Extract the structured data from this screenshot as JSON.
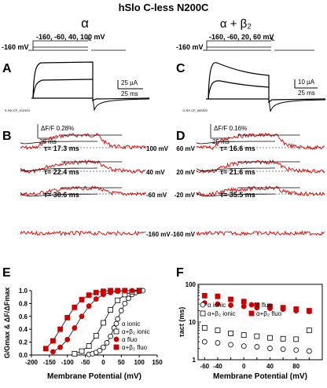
{
  "figure": {
    "title": "hSlo C-less N200C",
    "left": {
      "header": "α",
      "protocol_hold": "-160 mV",
      "protocol_steps": "-160, -60, 40, 100 mV",
      "panel_letter": "A",
      "scale_current": "25 µA",
      "scale_time": "25 ms",
      "file_tag": "K-NX-CF_102403"
    },
    "right": {
      "header": "α + β₂",
      "protocol_hold": "-160 mV",
      "protocol_steps": "-160, -60, 20, 60 mV",
      "panel_letter": "C",
      "scale_current": "10 µA",
      "scale_time": "25 ms",
      "file_tag": "G-NX-CF_060522"
    },
    "fluorescence_left": {
      "panel_letter": "B",
      "scale_df": "ΔF/F 0.28%",
      "scale_time": "25 ms",
      "traces": [
        {
          "voltage": "100 mV",
          "tau": "τ= 17.3 ms"
        },
        {
          "voltage": "40 mV",
          "tau": "τ= 22.4 ms"
        },
        {
          "voltage": "-60 mV",
          "tau": "τ= 30.6 ms"
        },
        {
          "voltage": "-160 mV",
          "tau": ""
        }
      ]
    },
    "fluorescence_right": {
      "panel_letter": "D",
      "scale_df": "ΔF/F 0.16%",
      "scale_time": "25 ms",
      "traces": [
        {
          "voltage": "60 mV",
          "tau": "τ= 16.6 ms"
        },
        {
          "voltage": "20 mV",
          "tau": "τ= 21.6 ms"
        },
        {
          "voltage": "-20 mV",
          "tau": "τ= 35.5 ms"
        },
        {
          "voltage": "-160 mV",
          "tau": ""
        }
      ]
    },
    "panel_E_letter": "E",
    "panel_F_letter": "F",
    "colors": {
      "fluo": "#cc0000",
      "ionic": "#000000",
      "trace": "#e00000"
    }
  },
  "chart_data": [
    {
      "type": "scatter",
      "xlabel": "Membrane Potential (mV)",
      "ylabel": "G/Gmax & ΔF/ΔFmax",
      "xlim": [
        -200,
        150
      ],
      "ylim": [
        0,
        1
      ],
      "x_ticks": [
        "-200",
        "-150",
        "-100",
        "-50",
        "0",
        "50",
        "100",
        "150"
      ],
      "y_ticks": [
        "0.0",
        "0.2",
        "0.4",
        "0.6",
        "0.8",
        "1.0"
      ],
      "legend_position": "bottom-right",
      "series": [
        {
          "name": "α ionic",
          "marker": "open-circle",
          "x": [
            -40,
            -30,
            -20,
            -10,
            0,
            10,
            20,
            30,
            40,
            50,
            60,
            70,
            80,
            90,
            100,
            110
          ],
          "y": [
            0.01,
            0.02,
            0.04,
            0.07,
            0.12,
            0.19,
            0.29,
            0.42,
            0.56,
            0.69,
            0.8,
            0.88,
            0.94,
            0.97,
            0.99,
            1.0
          ]
        },
        {
          "name": "α+β₂ ionic",
          "marker": "open-square",
          "x": [
            -80,
            -60,
            -40,
            -20,
            0,
            20,
            40,
            60,
            80,
            100
          ],
          "y": [
            0.02,
            0.06,
            0.14,
            0.3,
            0.5,
            0.7,
            0.85,
            0.94,
            0.98,
            1.0
          ]
        },
        {
          "name": "α fluo",
          "marker": "filled-circle",
          "x": [
            -140,
            -120,
            -100,
            -80,
            -60,
            -40,
            -20,
            0,
            20,
            40,
            60,
            80,
            100
          ],
          "y": [
            0.05,
            0.12,
            0.24,
            0.42,
            0.6,
            0.76,
            0.87,
            0.94,
            0.97,
            0.99,
            1.0,
            1.0,
            1.0
          ]
        },
        {
          "name": "α+β₂ fluo",
          "marker": "filled-square",
          "x": [
            -160,
            -140,
            -120,
            -100,
            -80,
            -60,
            -40,
            -20,
            0,
            20,
            40,
            60
          ],
          "y": [
            0.1,
            0.22,
            0.4,
            0.58,
            0.74,
            0.86,
            0.93,
            0.97,
            0.99,
            1.0,
            1.0,
            1.0
          ]
        }
      ]
    },
    {
      "type": "scatter",
      "xlabel": "Membrane Potential (mV)",
      "ylabel": "τact (ms)",
      "y_scale": "log",
      "xlim": [
        -70,
        120
      ],
      "ylim": [
        1,
        100
      ],
      "x_ticks": [
        "-60",
        "-40",
        "-20",
        "0",
        "20",
        "40",
        "60",
        "80",
        "100"
      ],
      "y_ticks": [
        "1",
        "10",
        "100"
      ],
      "legend_position": "top",
      "series": [
        {
          "name": "α ionic",
          "marker": "open-circle",
          "x": [
            -60,
            -40,
            -20,
            0,
            20,
            40,
            60,
            80,
            100
          ],
          "y": [
            3.0,
            2.8,
            2.5,
            2.3,
            2.2,
            2.0,
            1.9,
            1.8,
            1.7
          ]
        },
        {
          "name": "α+β₂ ionic",
          "marker": "open-square",
          "x": [
            -60,
            -40,
            -20,
            0,
            20,
            40,
            60,
            80,
            100
          ],
          "y": [
            7.0,
            6.0,
            5.0,
            4.5,
            4.2,
            3.8,
            3.6,
            3.5,
            6.0
          ]
        },
        {
          "name": "α fluo",
          "marker": "filled-circle",
          "x": [
            -60,
            -40,
            -20,
            0,
            20,
            40,
            60,
            80,
            100
          ],
          "y": [
            32,
            30,
            28,
            26,
            24,
            23,
            22,
            20,
            19
          ]
        },
        {
          "name": "α+β₂ fluo",
          "marker": "filled-square",
          "x": [
            -60,
            -40,
            -20,
            0,
            20,
            40,
            60,
            80,
            100
          ],
          "y": [
            50,
            48,
            40,
            35,
            28,
            26,
            24,
            22,
            20
          ]
        }
      ]
    }
  ]
}
